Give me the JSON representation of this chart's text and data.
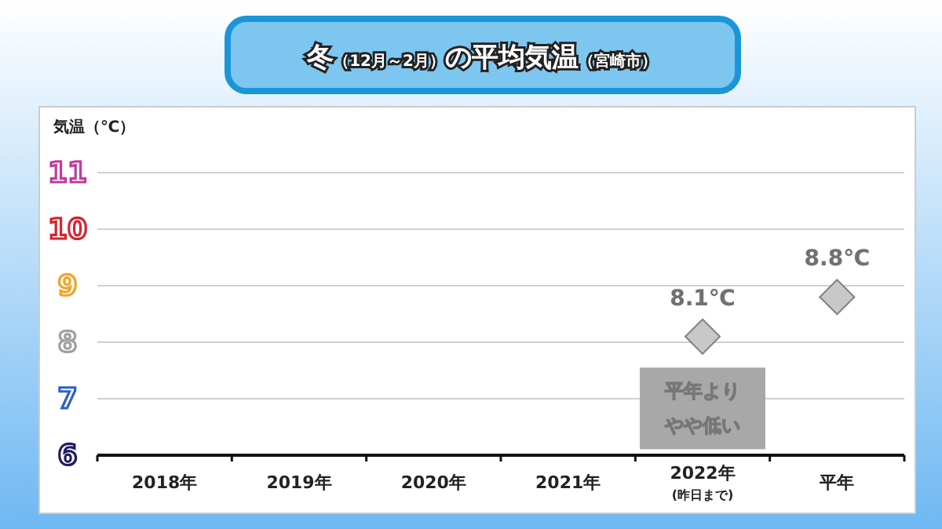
{
  "chart_data": {
    "type": "scatter",
    "title": "冬$_{（12月～2月）}$の平均気温$_{（宮崎市）}$",
    "ylabel": "気温（℃）",
    "categories": [
      "2018年",
      "2019年",
      "2020年",
      "2021年",
      "2022年$_{(昨日まで)}$",
      "平年"
    ],
    "values": [
      null,
      null,
      null,
      null,
      8.1,
      8.8
    ],
    "value_labels": [
      null,
      null,
      null,
      null,
      "8.1℃",
      "8.8℃"
    ],
    "color": "#c8c8c8",
    "marker": "diamond",
    "ylim": [
      6,
      11
    ],
    "yticks": [
      6,
      7,
      8,
      9,
      10,
      11
    ],
    "grid": "y",
    "annotations": [
      "平年よりやや低い"
    ]
  }
}
